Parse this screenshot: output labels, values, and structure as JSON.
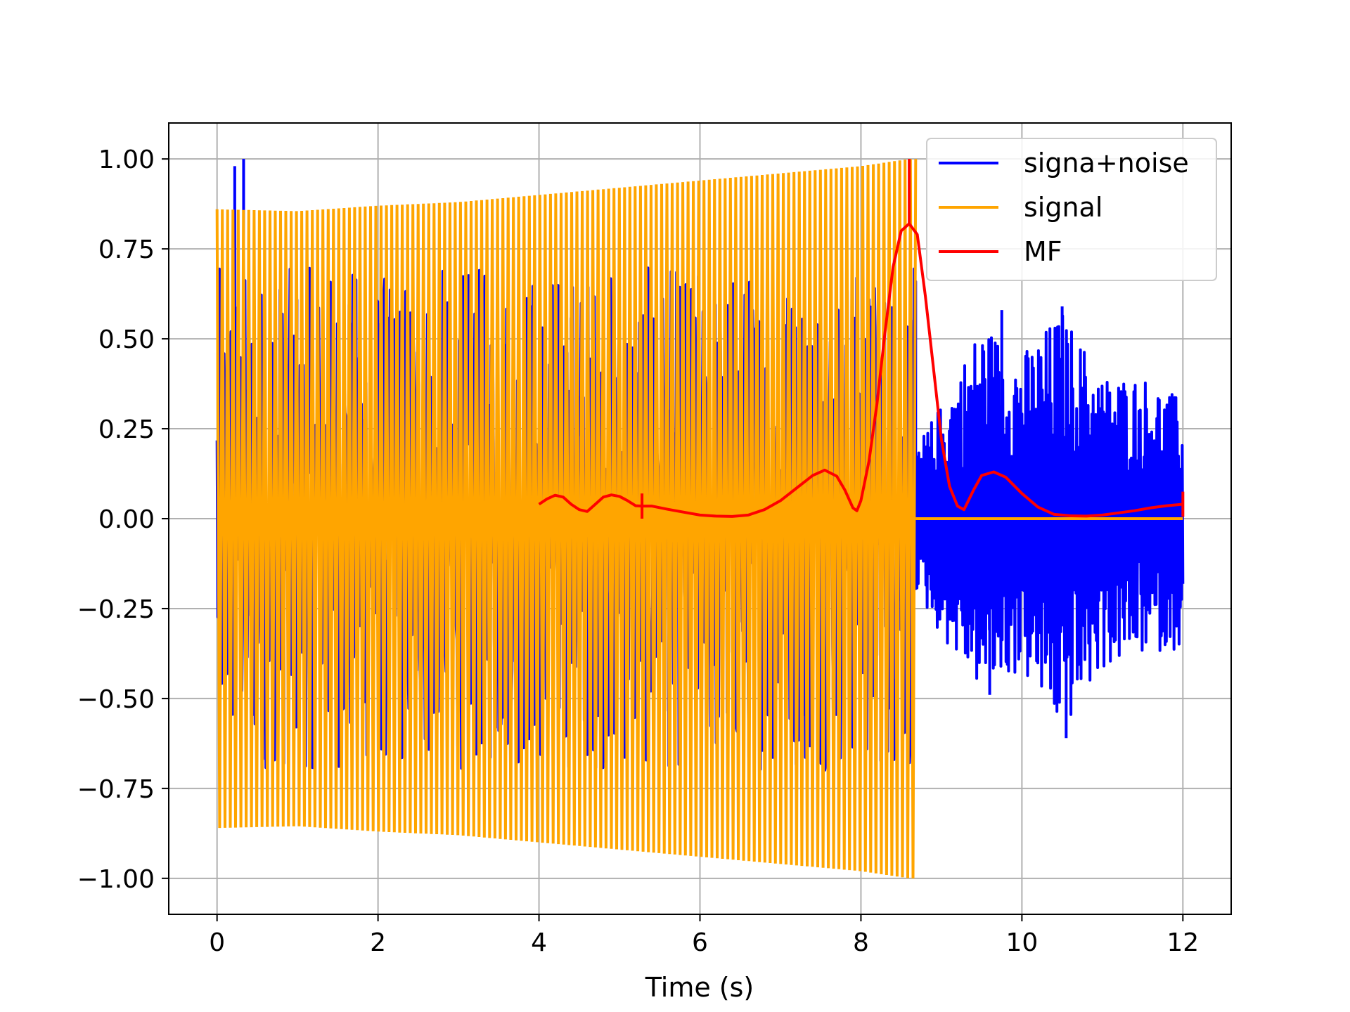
{
  "chart_data": {
    "type": "line",
    "title": "",
    "xlabel": "Time (s)",
    "ylabel": "",
    "xlim": [
      -0.6,
      12.6
    ],
    "ylim": [
      -1.1,
      1.1
    ],
    "grid": true,
    "legend_position": "top-right",
    "x_ticks": [
      0,
      2,
      4,
      6,
      8,
      10,
      12
    ],
    "x_tick_labels": [
      "0",
      "2",
      "4",
      "6",
      "8",
      "10",
      "12"
    ],
    "y_ticks": [
      1.0,
      0.75,
      0.5,
      0.25,
      0.0,
      -0.25,
      -0.5,
      -0.75,
      -1.0
    ],
    "y_tick_labels": [
      "1.00",
      "0.75",
      "0.50",
      "0.25",
      "0.00",
      "−0.25",
      "−0.50",
      "−0.75",
      "−1.00"
    ],
    "series": [
      {
        "name": "signa+noise",
        "color": "#0000ff",
        "description_values": {
          "x_range": [
            0,
            12
          ],
          "noise_only_after": 8.68,
          "spikes": [
            {
              "x": 0.22,
              "y": 0.98
            },
            {
              "x": 0.33,
              "y": 1.0
            },
            {
              "x": 9.6,
              "y": -0.49
            },
            {
              "x": 10.5,
              "y": 0.59
            },
            {
              "x": 10.55,
              "y": -0.61
            },
            {
              "x": 9.75,
              "y": 0.58
            }
          ]
        },
        "envelope": {
          "x": [
            8.68,
            9.0,
            9.5,
            10.0,
            10.5,
            11.0,
            11.5,
            12.0
          ],
          "upper": [
            0.2,
            0.32,
            0.55,
            0.46,
            0.58,
            0.4,
            0.4,
            0.33
          ],
          "lower": [
            -0.2,
            -0.33,
            -0.48,
            -0.43,
            -0.6,
            -0.42,
            -0.38,
            -0.36
          ]
        }
      },
      {
        "name": "signal",
        "color": "#ffa500",
        "x_range": [
          0,
          8.68
        ],
        "envelope_x": [
          0.0,
          1.0,
          2.0,
          3.0,
          4.0,
          5.0,
          6.0,
          7.0,
          8.0,
          8.6
        ],
        "envelope_y": [
          0.86,
          0.855,
          0.87,
          0.88,
          0.9,
          0.92,
          0.94,
          0.96,
          0.98,
          1.0
        ],
        "after_value": 0.0,
        "after_range": [
          8.68,
          12.0
        ]
      },
      {
        "name": "MF",
        "color": "#ff0000",
        "x": [
          4.0,
          4.1,
          4.2,
          4.3,
          4.4,
          4.5,
          4.6,
          4.7,
          4.8,
          4.9,
          5.0,
          5.1,
          5.2,
          5.28,
          5.4,
          5.6,
          5.8,
          6.0,
          6.2,
          6.4,
          6.6,
          6.8,
          7.0,
          7.2,
          7.4,
          7.55,
          7.7,
          7.8,
          7.9,
          7.95,
          8.0,
          8.1,
          8.2,
          8.3,
          8.4,
          8.5,
          8.6,
          8.7,
          8.8,
          8.9,
          9.0,
          9.1,
          9.2,
          9.28,
          9.4,
          9.5,
          9.65,
          9.8,
          10.0,
          10.2,
          10.4,
          10.6,
          10.8,
          11.0,
          11.2,
          11.4,
          11.6,
          11.8,
          12.0
        ],
        "y": [
          0.04,
          0.055,
          0.065,
          0.06,
          0.04,
          0.025,
          0.02,
          0.04,
          0.06,
          0.066,
          0.062,
          0.05,
          0.036,
          0.035,
          0.035,
          0.026,
          0.018,
          0.01,
          0.007,
          0.006,
          0.01,
          0.025,
          0.05,
          0.085,
          0.12,
          0.135,
          0.118,
          0.08,
          0.03,
          0.022,
          0.05,
          0.16,
          0.32,
          0.52,
          0.7,
          0.8,
          0.82,
          0.79,
          0.62,
          0.42,
          0.22,
          0.09,
          0.035,
          0.025,
          0.08,
          0.12,
          0.13,
          0.115,
          0.07,
          0.032,
          0.012,
          0.008,
          0.007,
          0.01,
          0.016,
          0.022,
          0.03,
          0.036,
          0.04
        ],
        "spikes": [
          {
            "x": 5.28,
            "y": 0.0
          },
          {
            "x": 8.6,
            "y": 1.0
          },
          {
            "x": 12.0,
            "y": 0.0
          }
        ]
      }
    ]
  },
  "legend": {
    "items": [
      {
        "label": "signa+noise",
        "color": "#0000ff"
      },
      {
        "label": "signal",
        "color": "#ffa500"
      },
      {
        "label": "MF",
        "color": "#ff0000"
      }
    ]
  }
}
